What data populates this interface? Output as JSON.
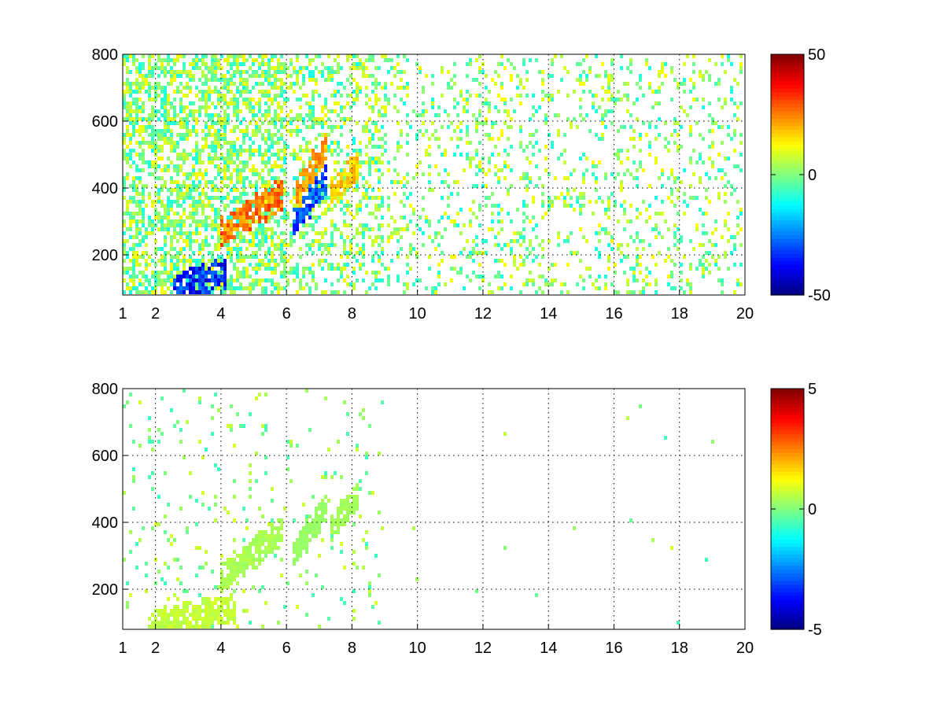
{
  "chart_data": [
    {
      "type": "heatmap",
      "title": "",
      "xlabel": "",
      "ylabel": "",
      "xlim": [
        1,
        20
      ],
      "ylim": [
        80,
        800
      ],
      "x_ticks": [
        1,
        2,
        4,
        6,
        8,
        10,
        12,
        14,
        16,
        18,
        20
      ],
      "y_ticks": [
        200,
        400,
        600,
        800
      ],
      "grid": true,
      "colormap": "jet",
      "colorbar": {
        "min": -50,
        "max": 50,
        "ticks": [
          -50,
          0,
          50
        ]
      },
      "features": [
        {
          "name": "",
          "x_range": [
            4.0,
            5.9
          ],
          "y_start": 270,
          "y_end": 380,
          "value": 30
        },
        {
          "name": "",
          "x_range": [
            6.2,
            7.2
          ],
          "y_start": 300,
          "y_end": 420,
          "value": -35
        },
        {
          "name": "",
          "x_range": [
            6.3,
            7.2
          ],
          "y_start": 380,
          "y_end": 520,
          "value": 25
        },
        {
          "name": "",
          "x_range": [
            7.3,
            8.2
          ],
          "y_start": 380,
          "y_end": 470,
          "value": 20
        },
        {
          "name": "",
          "x_range": [
            2.5,
            4.2
          ],
          "y_start": 90,
          "y_end": 150,
          "value": -40
        }
      ]
    },
    {
      "type": "heatmap",
      "title": "",
      "xlabel": "",
      "ylabel": "",
      "xlim": [
        1,
        20
      ],
      "ylim": [
        80,
        800
      ],
      "x_ticks": [
        1,
        2,
        4,
        6,
        8,
        10,
        12,
        14,
        16,
        18,
        20
      ],
      "y_ticks": [
        200,
        400,
        600,
        800
      ],
      "grid": true,
      "colormap": "jet",
      "colorbar": {
        "min": -5,
        "max": 5,
        "ticks": [
          -5,
          0,
          5
        ]
      },
      "features": [
        {
          "name": "",
          "x_range": [
            4.0,
            5.9
          ],
          "y_start": 230,
          "y_end": 380,
          "value": 0.5
        },
        {
          "name": "",
          "x_range": [
            6.2,
            7.2
          ],
          "y_start": 300,
          "y_end": 440,
          "value": 0.3
        },
        {
          "name": "",
          "x_range": [
            7.3,
            8.2
          ],
          "y_start": 380,
          "y_end": 480,
          "value": 0.4
        },
        {
          "name": "",
          "x_range": [
            1.8,
            4.5
          ],
          "y_start": 85,
          "y_end": 150,
          "value": 0.8
        }
      ]
    }
  ]
}
